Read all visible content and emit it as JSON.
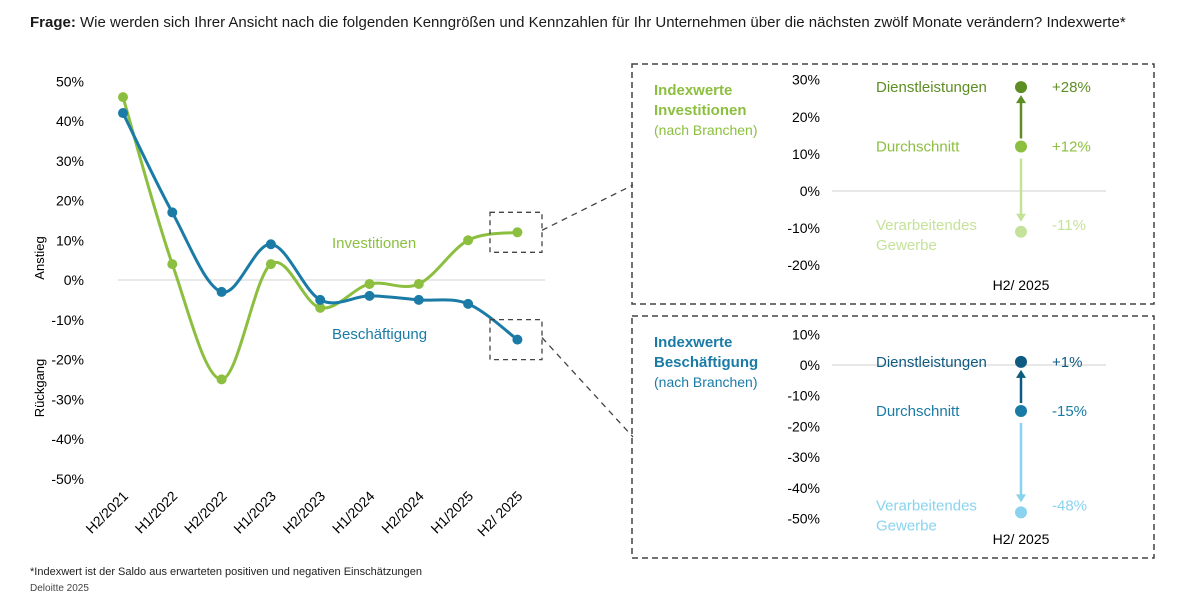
{
  "question": {
    "prefix": "Frage:",
    "text": "Wie werden sich Ihrer Ansicht nach die folgenden Kenngrößen und Kennzahlen für Ihr Unternehmen über die nächsten zwölf Monate verändern? Indexwerte*"
  },
  "colors": {
    "investitionen": "#8CBF3F",
    "beschaeftigung": "#1A7BA6",
    "inv_dark": "#5E8D23",
    "inv_light": "#C5E29B",
    "besch_dark": "#0F5A80",
    "besch_light": "#8AD3EF",
    "grid": "#d0d0d0",
    "box": "#444444"
  },
  "chart_data": [
    {
      "type": "line",
      "categories": [
        "H2/2021",
        "H1/2022",
        "H2/2022",
        "H1/2023",
        "H2/2023",
        "H1/2024",
        "H2/2024",
        "H1/2025",
        "H2/ 2025"
      ],
      "series": [
        {
          "name": "Investitionen",
          "values": [
            46,
            4,
            -25,
            4,
            -7,
            -1,
            -1,
            10,
            12
          ]
        },
        {
          "name": "Beschäftigung",
          "values": [
            42,
            17,
            -3,
            9,
            -5,
            -4,
            -5,
            -6,
            -15
          ]
        }
      ],
      "ylim": [
        -50,
        50
      ],
      "yticks": [
        "50%",
        "40%",
        "30%",
        "20%",
        "10%",
        "0%",
        "-10%",
        "-20%",
        "-30%",
        "-40%",
        "-50%"
      ],
      "ylabel_top": "Anstieg",
      "ylabel_bottom": "Rückgang"
    },
    {
      "type": "scatter",
      "title_line1": "Indexwerte",
      "title_line2": "Investitionen",
      "title_line3": "(nach Branchen)",
      "ylim": [
        -20,
        30
      ],
      "yticks": [
        "30%",
        "20%",
        "10%",
        "0%",
        "-10%",
        "-20%"
      ],
      "xlabel": "H2/ 2025",
      "points": [
        {
          "label": "Dienstleistungen",
          "value": 28,
          "value_label": "+28%"
        },
        {
          "label": "Durchschnitt",
          "value": 12,
          "value_label": "+12%"
        },
        {
          "label_line1": "Verarbeitendes",
          "label_line2": "Gewerbe",
          "value": -11,
          "value_label": "-11%"
        }
      ]
    },
    {
      "type": "scatter",
      "title_line1": "Indexwerte",
      "title_line2": "Beschäftigung",
      "title_line3": "(nach Branchen)",
      "ylim": [
        -50,
        10
      ],
      "yticks": [
        "10%",
        "0%",
        "-10%",
        "-20%",
        "-30%",
        "-40%",
        "-50%"
      ],
      "xlabel": "H2/ 2025",
      "points": [
        {
          "label": "Dienstleistungen",
          "value": 1,
          "value_label": "+1%"
        },
        {
          "label": "Durchschnitt",
          "value": -15,
          "value_label": "-15%"
        },
        {
          "label_line1": "Verarbeitendes",
          "label_line2": "Gewerbe",
          "value": -48,
          "value_label": "-48%"
        }
      ]
    }
  ],
  "footnote": "*Indexwert ist der Saldo aus erwarteten positiven und negativen Einschätzungen",
  "source": "Deloitte 2025"
}
